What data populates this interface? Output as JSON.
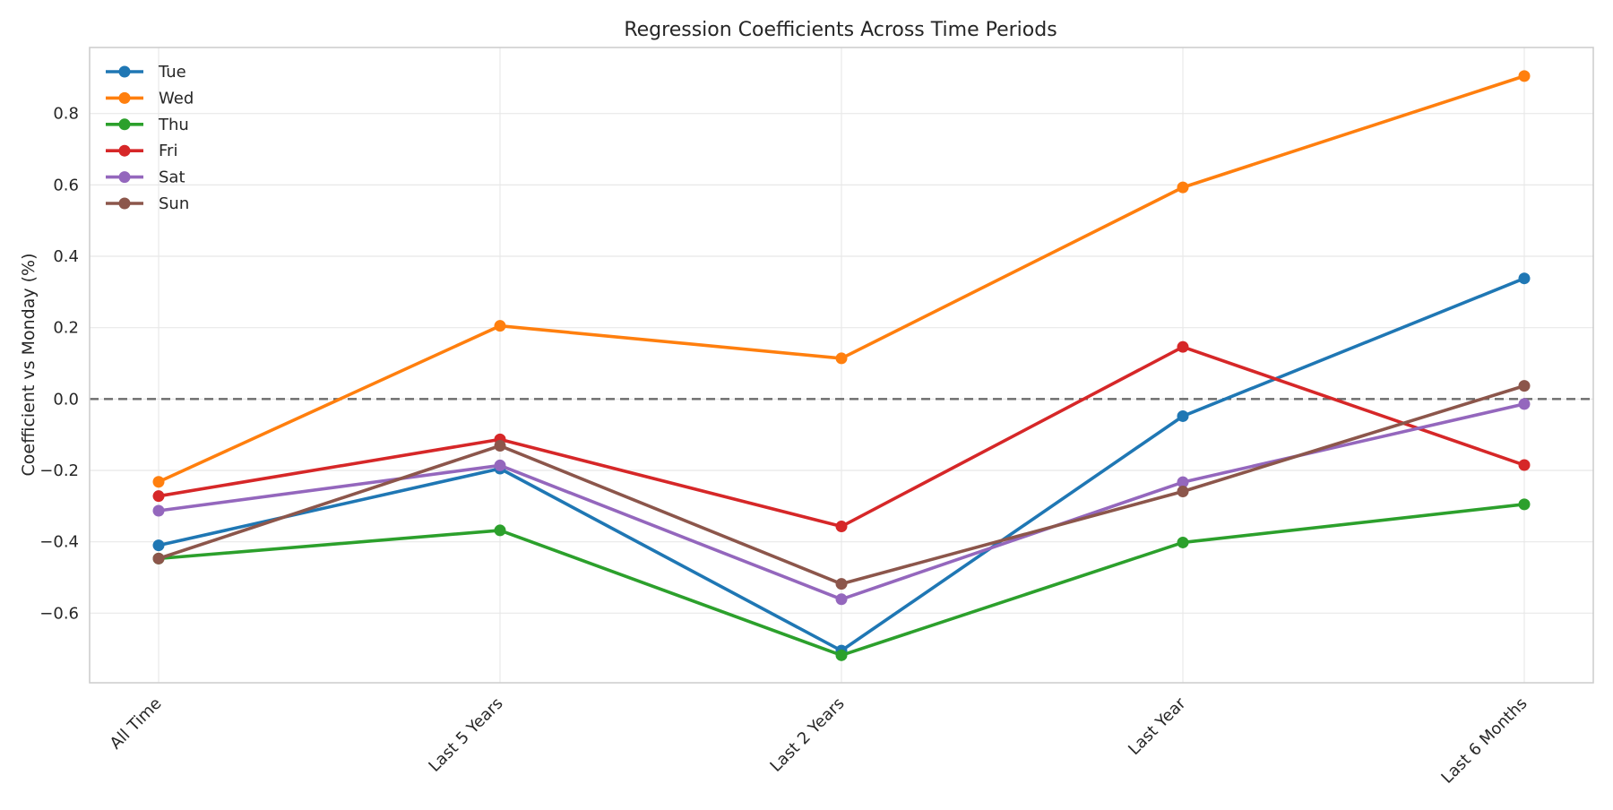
{
  "chart_data": {
    "type": "line",
    "title": "Regression Coefficients Across Time Periods",
    "xlabel": "",
    "ylabel": "Coefficient vs Monday (%)",
    "categories": [
      "All Time",
      "Last 5 Years",
      "Last 2 Years",
      "Last Year",
      "Last 6 Months"
    ],
    "ylim": [
      -0.795,
      0.985
    ],
    "yticks": [
      -0.6,
      -0.4,
      -0.2,
      0.0,
      0.2,
      0.4,
      0.6,
      0.8
    ],
    "ytick_labels": [
      "−0.6",
      "−0.4",
      "−0.2",
      "0.0",
      "0.2",
      "0.4",
      "0.6",
      "0.8"
    ],
    "grid": true,
    "legend_position": "top-left",
    "reference_line": {
      "y": 0.0,
      "style": "dashed",
      "color": "#6b6b6b"
    },
    "series": [
      {
        "name": "Tue",
        "color": "#1f77b4",
        "values": [
          -0.41,
          -0.195,
          -0.705,
          -0.048,
          0.338
        ]
      },
      {
        "name": "Wed",
        "color": "#ff7f0e",
        "values": [
          -0.232,
          0.205,
          0.114,
          0.593,
          0.905
        ]
      },
      {
        "name": "Thu",
        "color": "#2ca02c",
        "values": [
          -0.447,
          -0.368,
          -0.718,
          -0.402,
          -0.295
        ]
      },
      {
        "name": "Fri",
        "color": "#d62728",
        "values": [
          -0.272,
          -0.113,
          -0.357,
          0.146,
          -0.185
        ]
      },
      {
        "name": "Sat",
        "color": "#9467bd",
        "values": [
          -0.313,
          -0.186,
          -0.561,
          -0.233,
          -0.014
        ]
      },
      {
        "name": "Sun",
        "color": "#8c564b",
        "values": [
          -0.447,
          -0.131,
          -0.518,
          -0.259,
          0.037
        ]
      }
    ]
  }
}
